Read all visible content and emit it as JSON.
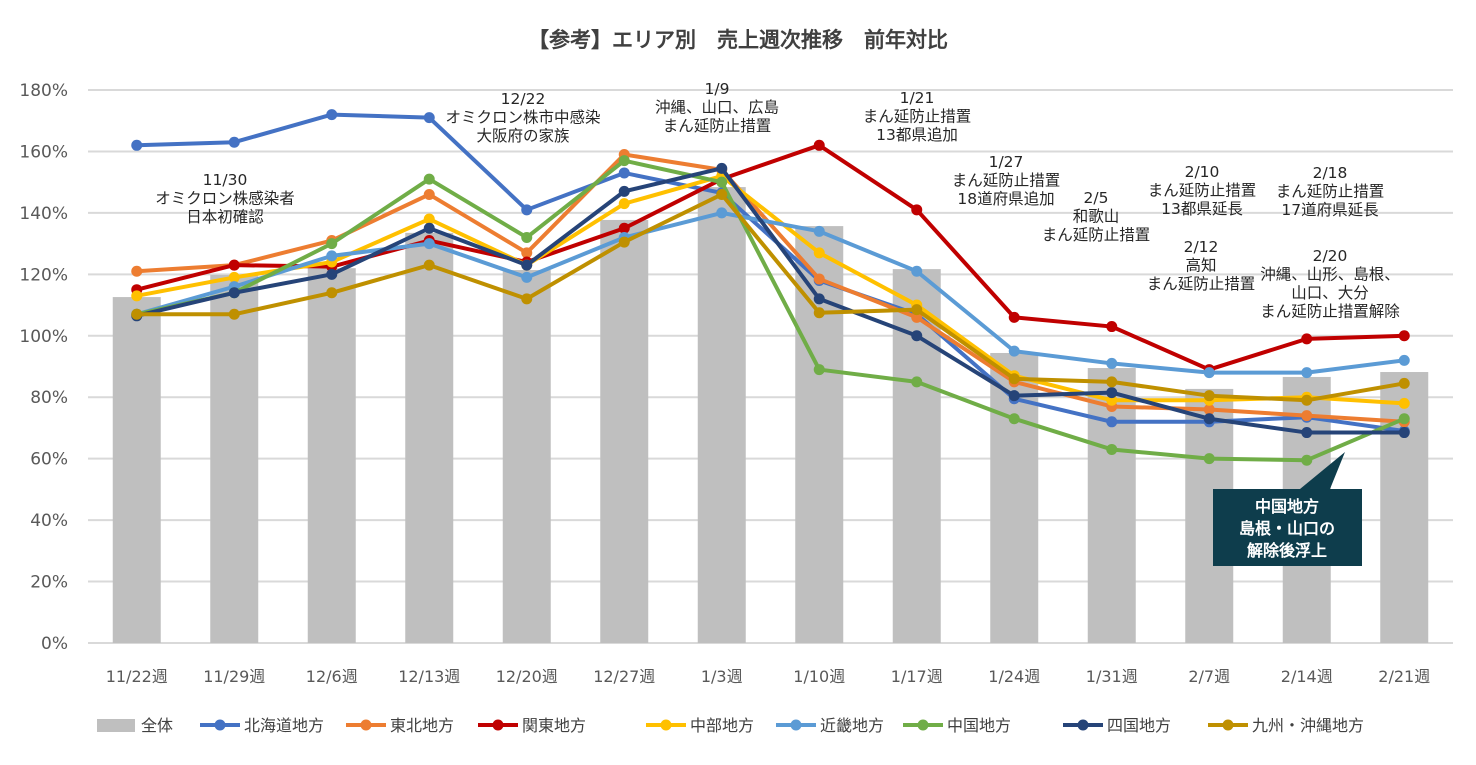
{
  "chart_data": {
    "type": "bar+line",
    "title": "【参考】エリア別　売上週次推移　前年対比",
    "xlabel": "",
    "ylabel": "",
    "ylim": [
      0,
      180
    ],
    "yticks": [
      "0%",
      "20%",
      "40%",
      "60%",
      "80%",
      "100%",
      "120%",
      "140%",
      "160%",
      "180%"
    ],
    "grid": true,
    "legend_position": "bottom",
    "categories": [
      "11/22週",
      "11/29週",
      "12/6週",
      "12/13週",
      "12/20週",
      "12/27週",
      "1/3週",
      "1/10週",
      "1/17週",
      "1/24週",
      "1/31週",
      "2/7週",
      "2/14週",
      "2/21週"
    ],
    "bars": {
      "name": "全体",
      "color": "#BFBFBF",
      "values": [
        112.6,
        119.8,
        122,
        133.5,
        121.4,
        137.7,
        148.4,
        135.7,
        121.7,
        94.4,
        89.5,
        82.7,
        86.6,
        88.2
      ]
    },
    "series": [
      {
        "name": "北海道地方",
        "color": "#4472C4",
        "values": [
          162,
          163,
          172,
          171,
          141,
          153,
          146.5,
          118,
          107,
          79.5,
          72,
          72,
          73.5,
          69
        ]
      },
      {
        "name": "東北地方",
        "color": "#ED7D31",
        "values": [
          121,
          123,
          131,
          146,
          127,
          159,
          154,
          118.5,
          106,
          85,
          77,
          76,
          74,
          72
        ]
      },
      {
        "name": "関東地方",
        "color": "#C00000",
        "values": [
          115,
          123,
          122.5,
          131,
          124,
          135,
          151,
          162,
          141,
          106,
          103,
          89,
          99,
          100
        ]
      },
      {
        "name": "中部地方",
        "color": "#FFC000",
        "values": [
          113,
          119,
          124,
          138,
          123,
          143,
          152,
          127,
          110,
          87,
          79,
          79,
          80,
          78
        ]
      },
      {
        "name": "近畿地方",
        "color": "#5B9BD5",
        "values": [
          107,
          116,
          126,
          130,
          119,
          132,
          140,
          134,
          121,
          95,
          91,
          88,
          88,
          92
        ]
      },
      {
        "name": "中国地方",
        "color": "#70AD47",
        "values": [
          107,
          114,
          130,
          151,
          132,
          157,
          150,
          89,
          85,
          73,
          63,
          60,
          59.5,
          73
        ]
      },
      {
        "name": "四国地方",
        "color": "#264478",
        "values": [
          106.5,
          114,
          120,
          135,
          123,
          147,
          154.5,
          112,
          100,
          80.5,
          81.5,
          73,
          68.5,
          68.5
        ]
      },
      {
        "name": "九州・沖縄地方",
        "color": "#BF9000",
        "values": [
          107,
          107,
          114,
          123,
          112,
          130.5,
          146,
          107.5,
          108.5,
          86,
          85,
          80.5,
          79,
          84.5
        ]
      }
    ],
    "annotations": [
      {
        "category": "11/29週",
        "lines": [
          "11/30",
          "オミクロン株感染者",
          "日本初確認"
        ]
      },
      {
        "category": "12/20週",
        "lines": [
          "12/22",
          "オミクロン株市中感染",
          "大阪府の家族"
        ]
      },
      {
        "category": "1/3週",
        "lines": [
          "1/9",
          "沖縄、山口、広島",
          "まん延防止措置"
        ]
      },
      {
        "category": "1/17週",
        "lines": [
          "1/21",
          "まん延防止措置",
          "13都県追加"
        ]
      },
      {
        "category": "1/24週",
        "lines": [
          "1/27",
          "まん延防止措置",
          "18道府県追加"
        ]
      },
      {
        "category": "1/31週",
        "lines": [
          "2/5",
          "和歌山",
          "まん延防止措置"
        ]
      },
      {
        "category": "2/7週",
        "lines": [
          "2/10",
          "まん延防止措置",
          "13都県延長"
        ]
      },
      {
        "category": "2/7週",
        "lines": [
          "2/12",
          "高知",
          "まん延防止措置"
        ]
      },
      {
        "category": "2/14週",
        "lines": [
          "2/18",
          "まん延防止措置",
          "17道府県延長"
        ]
      },
      {
        "category": "2/14週",
        "lines": [
          "2/20",
          "沖縄、山形、島根、",
          "山口、大分",
          "まん延防止措置解除"
        ]
      }
    ],
    "callout": {
      "lines": [
        "中国地方",
        "島根・山口の",
        "解除後浮上"
      ],
      "color": "#0E3D4C"
    }
  }
}
